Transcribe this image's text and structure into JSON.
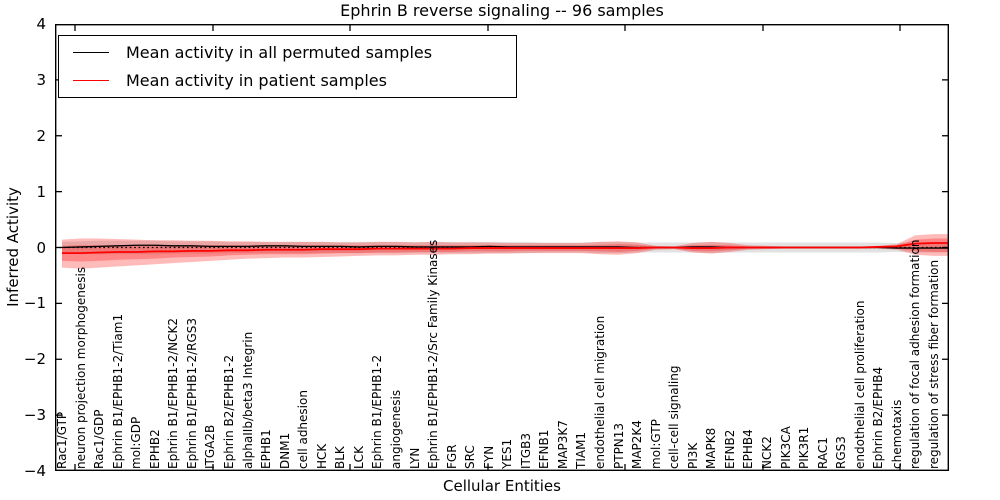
{
  "chart_data": {
    "type": "line",
    "title": "Ephrin B reverse signaling -- 96 samples",
    "xlabel": "Cellular Entities",
    "ylabel": "Inferred Activity",
    "ylim": [
      -4,
      4
    ],
    "ytick_labels": [
      "4",
      "3",
      "2",
      "1",
      "0",
      "−1",
      "−2",
      "−3",
      "−4"
    ],
    "grid": false,
    "legend_position": "upper left",
    "legend": [
      {
        "label": "Mean activity in all permuted samples",
        "color": "#000000"
      },
      {
        "label": "Mean activity in patient samples",
        "color": "#ff0000"
      }
    ],
    "zero_line": {
      "value": 0,
      "style": "dotted",
      "color": "#000000"
    },
    "categories": [
      "Rac1/GTP",
      "neuron projection morphogenesis",
      "Rac1/GDP",
      "Ephrin B1/EPHB1-2/Tiam1",
      "mol:GDP",
      "EPHB2",
      "Ephrin B1/EPHB1-2/NCK2",
      "Ephrin B1/EPHB1-2/RGS3",
      "ITGA2B",
      "Ephrin B2/EPHB1-2",
      "alphaIIb/beta3 Integrin",
      "EPHB1",
      "DNM1",
      "cell adhesion",
      "HCK",
      "BLK",
      "LCK",
      "Ephrin B1/EPHB1-2",
      "angiogenesis",
      "LYN",
      "Ephrin B1/EPHB1-2/Src Family Kinases",
      "FGR",
      "SRC",
      "FYN",
      "YES1",
      "ITGB3",
      "EFNB1",
      "MAP3K7",
      "TIAM1",
      "endothelial cell migration",
      "PTPN13",
      "MAP2K4",
      "mol:GTP",
      "cell-cell signaling",
      "PI3K",
      "MAPK8",
      "EFNB2",
      "EPHB4",
      "NCK2",
      "PIK3CA",
      "PIK3R1",
      "RAC1",
      "RGS3",
      "endothelial cell proliferation",
      "Ephrin B2/EPHB4",
      "chemotaxis",
      "regulation of focal adhesion formation",
      "regulation of stress fiber formation"
    ],
    "series": [
      {
        "name": "Mean activity in all permuted samples",
        "color": "#000000",
        "width": 1.3,
        "values": [
          0.0,
          0.01,
          0.02,
          0.03,
          0.04,
          0.04,
          0.03,
          0.03,
          0.02,
          0.02,
          0.02,
          0.03,
          0.03,
          0.02,
          0.02,
          0.02,
          0.01,
          0.02,
          0.02,
          0.01,
          0.01,
          0.01,
          0.01,
          0.02,
          0.01,
          0.01,
          0.01,
          0.01,
          0.01,
          0.01,
          0.01,
          0.0,
          0.0,
          0.0,
          0.01,
          0.01,
          0.0,
          0.0,
          0.0,
          0.0,
          0.0,
          0.0,
          0.0,
          0.0,
          0.0,
          -0.01,
          -0.01,
          -0.01
        ]
      },
      {
        "name": "Mean activity in patient samples",
        "color": "#ff0000",
        "width": 1.8,
        "values": [
          -0.1,
          -0.1,
          -0.09,
          -0.08,
          -0.08,
          -0.07,
          -0.07,
          -0.06,
          -0.06,
          -0.05,
          -0.05,
          -0.04,
          -0.04,
          -0.04,
          -0.03,
          -0.03,
          -0.03,
          -0.02,
          -0.02,
          -0.02,
          -0.02,
          -0.02,
          -0.01,
          -0.01,
          -0.01,
          -0.01,
          -0.01,
          -0.01,
          -0.01,
          -0.01,
          -0.01,
          -0.01,
          0.0,
          0.0,
          -0.01,
          -0.01,
          0.0,
          0.0,
          0.0,
          0.0,
          0.0,
          0.0,
          0.0,
          0.0,
          0.01,
          0.02,
          0.07,
          0.08
        ]
      }
    ],
    "bands": [
      {
        "name": "permuted-samples-range",
        "color": "rgba(60,60,60,0.15)",
        "upper": [
          0.1,
          0.11,
          0.12,
          0.12,
          0.12,
          0.12,
          0.11,
          0.11,
          0.11,
          0.1,
          0.1,
          0.1,
          0.1,
          0.1,
          0.1,
          0.1,
          0.1,
          0.1,
          0.1,
          0.1,
          0.1,
          0.1,
          0.1,
          0.1,
          0.1,
          0.1,
          0.09,
          0.09,
          0.09,
          0.1,
          0.1,
          0.09,
          0.09,
          0.09,
          0.09,
          0.1,
          0.09,
          0.09,
          0.09,
          0.09,
          0.09,
          0.09,
          0.09,
          0.09,
          0.09,
          0.08,
          0.09,
          0.09
        ],
        "lower": [
          -0.1,
          -0.11,
          -0.12,
          -0.12,
          -0.12,
          -0.12,
          -0.11,
          -0.11,
          -0.11,
          -0.1,
          -0.1,
          -0.1,
          -0.1,
          -0.1,
          -0.1,
          -0.1,
          -0.1,
          -0.1,
          -0.1,
          -0.1,
          -0.1,
          -0.1,
          -0.1,
          -0.1,
          -0.1,
          -0.1,
          -0.09,
          -0.09,
          -0.09,
          -0.1,
          -0.1,
          -0.09,
          -0.09,
          -0.09,
          -0.09,
          -0.1,
          -0.09,
          -0.09,
          -0.09,
          -0.09,
          -0.09,
          -0.09,
          -0.09,
          -0.09,
          -0.09,
          -0.08,
          -0.09,
          -0.09
        ]
      },
      {
        "name": "patient-samples-range-outer",
        "color": "rgba(255,0,0,0.27)",
        "upper": [
          0.14,
          0.16,
          0.16,
          0.15,
          0.14,
          0.13,
          0.13,
          0.12,
          0.12,
          0.11,
          0.11,
          0.1,
          0.1,
          0.1,
          0.1,
          0.09,
          0.09,
          0.1,
          0.1,
          0.09,
          0.1,
          0.09,
          0.09,
          0.09,
          0.08,
          0.08,
          0.08,
          0.08,
          0.08,
          0.1,
          0.11,
          0.09,
          0.03,
          0.02,
          0.08,
          0.1,
          0.08,
          0.04,
          0.03,
          0.02,
          0.02,
          0.02,
          0.02,
          0.02,
          0.03,
          0.06,
          0.22,
          0.24
        ],
        "lower": [
          -0.36,
          -0.38,
          -0.36,
          -0.34,
          -0.32,
          -0.3,
          -0.28,
          -0.26,
          -0.24,
          -0.22,
          -0.2,
          -0.19,
          -0.18,
          -0.18,
          -0.17,
          -0.16,
          -0.15,
          -0.14,
          -0.14,
          -0.13,
          -0.13,
          -0.12,
          -0.12,
          -0.11,
          -0.11,
          -0.1,
          -0.1,
          -0.1,
          -0.1,
          -0.12,
          -0.13,
          -0.1,
          -0.04,
          -0.03,
          -0.09,
          -0.11,
          -0.08,
          -0.04,
          -0.03,
          -0.02,
          -0.02,
          -0.02,
          -0.02,
          -0.02,
          -0.02,
          -0.04,
          -0.13,
          -0.15
        ]
      },
      {
        "name": "patient-samples-range-inner",
        "color": "rgba(255,0,0,0.27)",
        "upper": [
          0.03,
          0.04,
          0.04,
          0.04,
          0.04,
          0.04,
          0.04,
          0.04,
          0.04,
          0.04,
          0.04,
          0.04,
          0.04,
          0.04,
          0.04,
          0.04,
          0.04,
          0.04,
          0.04,
          0.04,
          0.04,
          0.04,
          0.04,
          0.04,
          0.04,
          0.04,
          0.04,
          0.04,
          0.04,
          0.05,
          0.06,
          0.05,
          0.02,
          0.01,
          0.04,
          0.05,
          0.04,
          0.02,
          0.02,
          0.01,
          0.01,
          0.01,
          0.01,
          0.01,
          0.02,
          0.04,
          0.14,
          0.16
        ],
        "lower": [
          -0.24,
          -0.25,
          -0.24,
          -0.22,
          -0.21,
          -0.2,
          -0.18,
          -0.17,
          -0.16,
          -0.14,
          -0.13,
          -0.12,
          -0.12,
          -0.12,
          -0.11,
          -0.1,
          -0.1,
          -0.09,
          -0.09,
          -0.08,
          -0.08,
          -0.08,
          -0.07,
          -0.07,
          -0.07,
          -0.06,
          -0.06,
          -0.06,
          -0.06,
          -0.07,
          -0.08,
          -0.06,
          -0.02,
          -0.02,
          -0.06,
          -0.07,
          -0.05,
          -0.02,
          -0.02,
          -0.01,
          -0.01,
          -0.01,
          -0.01,
          -0.01,
          -0.01,
          -0.02,
          -0.07,
          -0.08
        ]
      }
    ]
  }
}
